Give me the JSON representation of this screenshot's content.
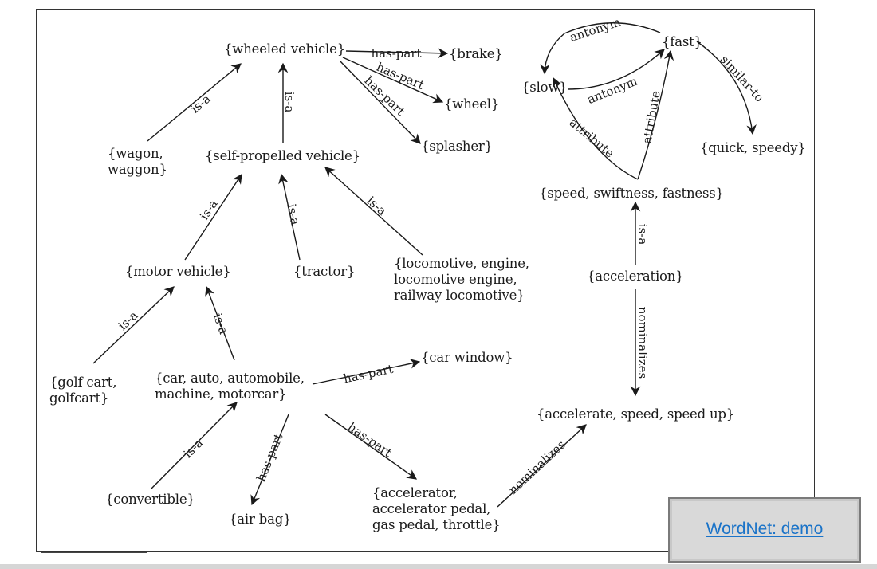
{
  "nodes": {
    "wheeled_vehicle": "{wheeled vehicle}",
    "brake": "{brake}",
    "wheel": "{wheel}",
    "splasher": "{splasher}",
    "wagon": "{wagon,\nwaggon}",
    "self_propelled_vehicle": "{self-propelled vehicle}",
    "motor_vehicle": "{motor vehicle}",
    "tractor": "{tractor}",
    "locomotive": "{locomotive, engine,\nlocomotive engine,\nrailway locomotive}",
    "golf_cart": "{golf cart,\ngolfcart}",
    "car": "{car, auto, automobile,\nmachine, motorcar}",
    "car_window": "{car window}",
    "convertible": "{convertible}",
    "air_bag": "{air bag}",
    "accelerator": "{accelerator,\naccelerator pedal,\ngas pedal, throttle}",
    "fast": "{fast}",
    "slow": "{slow}",
    "quick_speedy": "{quick, speedy}",
    "speed": "{speed, swiftness, fastness}",
    "acceleration": "{acceleration}",
    "accelerate": "{accelerate, speed, speed up}"
  },
  "relations": {
    "is_a": "is-a",
    "has_part": "has-part",
    "antonym": "antonym",
    "similar_to": "similar-to",
    "attribute": "attribute",
    "nominalizes": "nominalizes"
  },
  "link": {
    "label": "WordNet: demo"
  },
  "colors": {
    "link": "#1a73c8",
    "ink": "#1a1a1a"
  }
}
